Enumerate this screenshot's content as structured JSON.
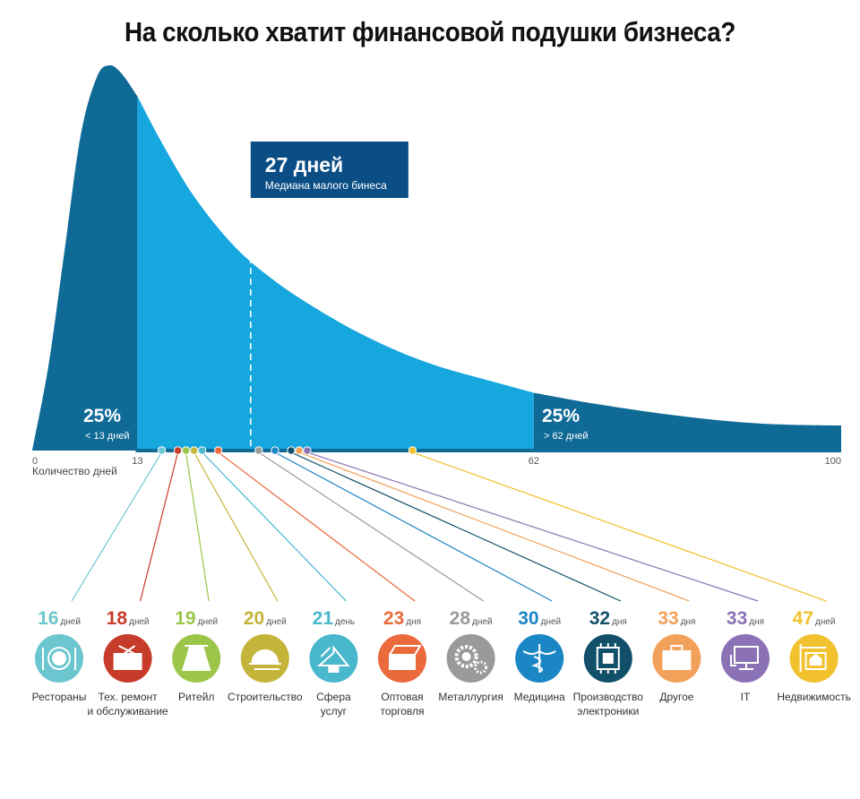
{
  "title": "На сколько хватит финансовой подушки бизнеса?",
  "colors": {
    "dark": "#0f6a96",
    "light": "#16a7df",
    "median_box": "#0b4e86",
    "axis_bar": "#0f6a96"
  },
  "chart_data": {
    "type": "area",
    "title": "На сколько хватит финансовой подушки бизнеса?",
    "xlabel": "Количество дней",
    "xlim": [
      0,
      100
    ],
    "ticks": [
      "0",
      "13",
      "62",
      "100"
    ],
    "median": {
      "value": 27,
      "value_label": "27 дней",
      "caption": "Медиана малого бинеса"
    },
    "quartiles": [
      {
        "percent": "25%",
        "caption": "< 13 дней",
        "bound": 13
      },
      {
        "percent": "25%",
        "caption": "> 62 дней",
        "bound": 62
      }
    ],
    "distribution": [
      {
        "x": 0,
        "y": 0
      },
      {
        "x": 2,
        "y": 22
      },
      {
        "x": 4,
        "y": 52
      },
      {
        "x": 6,
        "y": 82
      },
      {
        "x": 8,
        "y": 97
      },
      {
        "x": 9.5,
        "y": 100
      },
      {
        "x": 11,
        "y": 98
      },
      {
        "x": 13,
        "y": 92
      },
      {
        "x": 16,
        "y": 80
      },
      {
        "x": 20,
        "y": 66
      },
      {
        "x": 25,
        "y": 53
      },
      {
        "x": 30,
        "y": 44
      },
      {
        "x": 35,
        "y": 37
      },
      {
        "x": 40,
        "y": 31
      },
      {
        "x": 45,
        "y": 26
      },
      {
        "x": 50,
        "y": 22
      },
      {
        "x": 55,
        "y": 19
      },
      {
        "x": 62,
        "y": 15
      },
      {
        "x": 70,
        "y": 12
      },
      {
        "x": 80,
        "y": 9
      },
      {
        "x": 90,
        "y": 7
      },
      {
        "x": 100,
        "y": 6.5
      }
    ],
    "industries": [
      {
        "days": 16,
        "num": "16",
        "unit": "дней",
        "label": [
          "Рестораны"
        ],
        "color": "#6bc6cf",
        "icon": "restaurant-icon"
      },
      {
        "days": 18,
        "num": "18",
        "unit": "дней",
        "label": [
          "Тех. ремонт",
          "и обслуживание"
        ],
        "color": "#c73b2a",
        "icon": "repair-toolbox-icon"
      },
      {
        "days": 19,
        "num": "19",
        "unit": "дней",
        "label": [
          "Ритейл"
        ],
        "color": "#9cc64a",
        "icon": "retail-dress-icon"
      },
      {
        "days": 20,
        "num": "20",
        "unit": "дней",
        "label": [
          "Строительство"
        ],
        "color": "#c4b43a",
        "icon": "construction-helmet-icon"
      },
      {
        "days": 21,
        "num": "21",
        "unit": "день",
        "label": [
          "Сфера",
          "услуг"
        ],
        "color": "#49b7cc",
        "icon": "services-hanger-icon"
      },
      {
        "days": 23,
        "num": "23",
        "unit": "дня",
        "label": [
          "Оптовая",
          "торговля"
        ],
        "color": "#ea6a3c",
        "icon": "wholesale-boxes-icon"
      },
      {
        "days": 28,
        "num": "28",
        "unit": "дней",
        "label": [
          "Металлургия"
        ],
        "color": "#9a9a9a",
        "icon": "metallurgy-gears-icon"
      },
      {
        "days": 30,
        "num": "30",
        "unit": "дней",
        "label": [
          "Медицина"
        ],
        "color": "#1a86c4",
        "icon": "medicine-caduceus-icon"
      },
      {
        "days": 32,
        "num": "32",
        "unit": "дня",
        "label": [
          "Производство",
          "электроники"
        ],
        "color": "#12506a",
        "icon": "electronics-chip-icon"
      },
      {
        "days": 33,
        "num": "33",
        "unit": "дня",
        "label": [
          "Другое"
        ],
        "color": "#f2a15a",
        "icon": "other-briefcase-icon"
      },
      {
        "days": 33,
        "num": "33",
        "unit": "дня",
        "label": [
          "IT"
        ],
        "color": "#8b72b6",
        "icon": "it-monitor-icon"
      },
      {
        "days": 47,
        "num": "47",
        "unit": "дней",
        "label": [
          "Недвижимость"
        ],
        "color": "#f1c12e",
        "icon": "real-estate-sign-icon"
      }
    ]
  }
}
